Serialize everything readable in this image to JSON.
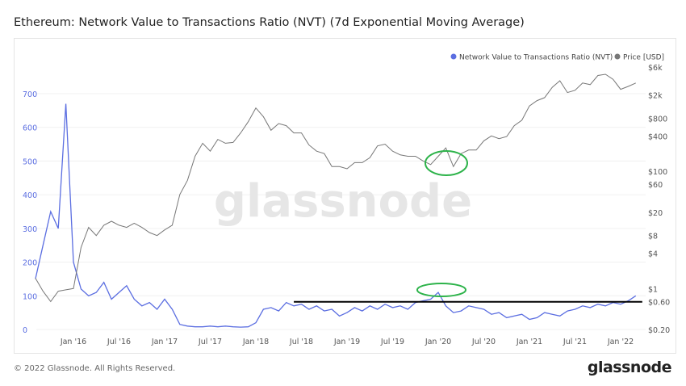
{
  "chart_data": {
    "type": "line",
    "title": "Ethereum: Network Value to Transactions Ratio (NVT) (7d Exponential Moving Average)",
    "x_start": "2015-08",
    "x_end": "2022-03",
    "x_step": "month",
    "x_ticks": [
      "Jan '16",
      "Jul '16",
      "Jan '17",
      "Jul '17",
      "Jan '18",
      "Jul '18",
      "Jan '19",
      "Jul '19",
      "Jan '20",
      "Jul '20",
      "Jan '21",
      "Jul '21",
      "Jan '22"
    ],
    "y_left": {
      "ticks": [
        "0",
        "100",
        "200",
        "300",
        "400",
        "500",
        "600",
        "700"
      ],
      "range": [
        0,
        700
      ]
    },
    "y_right": {
      "scale": "log",
      "ticks": [
        "$0.20",
        "$0.60",
        "$1",
        "$4",
        "$8",
        "$20",
        "$60",
        "$100",
        "$400",
        "$800",
        "$2k",
        "$6k"
      ],
      "range": [
        0.2,
        6000
      ]
    },
    "legend": {
      "placement": "top-right",
      "items": [
        {
          "name": "Network Value to Transactions Ratio (NVT)",
          "color": "#5b6ee1"
        },
        {
          "name": "Price [USD]",
          "color": "#777777"
        }
      ]
    },
    "grid": "horizontal",
    "series": [
      {
        "name": "Network Value to Transactions Ratio (NVT)",
        "axis": "left",
        "color": "#5b6ee1",
        "values": [
          150,
          250,
          350,
          300,
          670,
          200,
          120,
          100,
          110,
          140,
          90,
          110,
          130,
          90,
          70,
          80,
          60,
          90,
          60,
          15,
          10,
          8,
          8,
          10,
          8,
          10,
          8,
          7,
          8,
          20,
          60,
          65,
          55,
          80,
          70,
          75,
          60,
          70,
          55,
          60,
          40,
          50,
          65,
          55,
          70,
          60,
          75,
          65,
          70,
          60,
          80,
          85,
          90,
          110,
          70,
          50,
          55,
          70,
          65,
          60,
          45,
          50,
          35,
          40,
          45,
          30,
          35,
          50,
          45,
          40,
          55,
          60,
          70,
          65,
          75,
          70,
          80,
          75,
          85,
          100
        ]
      },
      {
        "name": "Price [USD]",
        "axis": "right",
        "color": "#777777",
        "values": [
          1.5,
          0.9,
          0.6,
          0.9,
          0.95,
          1.0,
          5,
          11,
          8,
          12,
          14,
          12,
          11,
          13,
          11,
          9,
          8,
          10,
          12,
          40,
          70,
          180,
          300,
          220,
          350,
          300,
          310,
          450,
          700,
          1200,
          850,
          500,
          650,
          600,
          450,
          450,
          280,
          220,
          200,
          120,
          120,
          110,
          140,
          140,
          170,
          270,
          290,
          220,
          190,
          180,
          180,
          150,
          130,
          180,
          250,
          120,
          200,
          230,
          230,
          330,
          400,
          360,
          390,
          600,
          740,
          1300,
          1600,
          1800,
          2700,
          3500,
          2200,
          2400,
          3200,
          3000,
          4300,
          4500,
          3700,
          2500,
          2800,
          3200
        ]
      }
    ],
    "annotations": {
      "horizontal_line": {
        "value": 82,
        "from": "2018-06",
        "to": "2022-03",
        "color": "#000000"
      },
      "highlight_color": "#2db34a"
    },
    "watermark": "glassnode"
  },
  "footer": {
    "copyright": "© 2022 Glassnode. All Rights Reserved.",
    "logo": "glassnode"
  }
}
